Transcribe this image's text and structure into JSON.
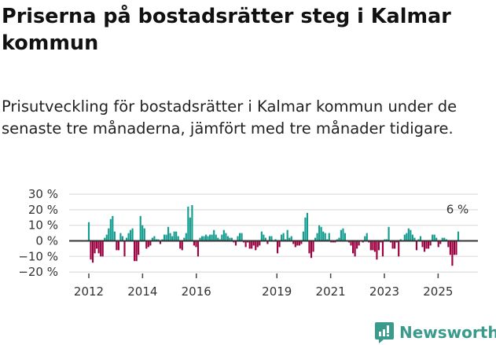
{
  "title": "Priserna på bostadsrätter steg i Kalmar kommun",
  "subtitle": "Prisutveckling för bostadsrätter i Kalmar kommun under de senaste tre månaderna, jämfört med tre månader tidigare.",
  "brand": {
    "name": "Newsworthy",
    "icon": "newsworthy-logo-icon",
    "color": "#3a9a8c"
  },
  "colors": {
    "positive": "#139c8f",
    "negative": "#9b0040",
    "grid": "#dddddd",
    "zero": "#333333"
  },
  "chart_data": {
    "type": "bar",
    "title": "Priserna på bostadsrätter steg i Kalmar kommun",
    "xlabel": "",
    "ylabel": "",
    "unit": "%",
    "x_start": "2012-01",
    "x_end": "2025-10",
    "frequency": "monthly",
    "ylim": [
      -20,
      30
    ],
    "yticks": [
      30,
      20,
      10,
      0,
      -10,
      -20
    ],
    "ytick_labels": [
      "30 %",
      "20 %",
      "10 %",
      "0 %",
      "−10 %",
      "−20 %"
    ],
    "xticks": [
      2012,
      2014,
      2016,
      2019,
      2021,
      2023,
      2025
    ],
    "xtick_labels": [
      "2012",
      "2014",
      "2016",
      "2019",
      "2021",
      "2023",
      "2025"
    ],
    "grid": true,
    "annotation": {
      "text": "6 %",
      "target": "last"
    },
    "values": [
      12,
      -12,
      -14,
      -8,
      -5,
      -8,
      -10,
      -10,
      2,
      4,
      8,
      14,
      16,
      6,
      -6,
      -6,
      5,
      3,
      -10,
      2,
      5,
      7,
      8,
      -13,
      -13,
      -9,
      16,
      10,
      8,
      -5,
      -4,
      -3,
      2,
      3,
      1,
      1,
      -2,
      1,
      4,
      4,
      9,
      5,
      3,
      6,
      6,
      3,
      -5,
      -6,
      2,
      5,
      22,
      15,
      23,
      -3,
      -4,
      -10,
      2,
      3,
      3,
      4,
      3,
      4,
      4,
      7,
      4,
      2,
      1,
      4,
      7,
      5,
      3,
      2,
      2,
      -1,
      -3,
      3,
      5,
      5,
      -1,
      -4,
      -1,
      -5,
      -5,
      -3,
      -6,
      -4,
      -3,
      6,
      4,
      2,
      -2,
      3,
      3,
      0,
      1,
      -8,
      -4,
      4,
      5,
      1,
      7,
      2,
      3,
      -2,
      -4,
      -3,
      -3,
      -2,
      6,
      15,
      18,
      -8,
      -11,
      -7,
      2,
      5,
      10,
      9,
      6,
      5,
      1,
      5,
      -1,
      -1,
      -1,
      1,
      2,
      7,
      8,
      5,
      0,
      -1,
      -3,
      -8,
      -10,
      -5,
      -3,
      0,
      -1,
      3,
      5,
      -1,
      -6,
      -6,
      -7,
      -12,
      -6,
      -1,
      -10,
      1,
      1,
      9,
      -1,
      -5,
      -5,
      -1,
      -10,
      1,
      0,
      4,
      5,
      8,
      7,
      4,
      2,
      -6,
      1,
      3,
      -4,
      -7,
      -5,
      -5,
      -3,
      4,
      4,
      2,
      -4,
      -2,
      2,
      2,
      1,
      -4,
      -9,
      -16,
      -9,
      -9,
      6
    ]
  }
}
